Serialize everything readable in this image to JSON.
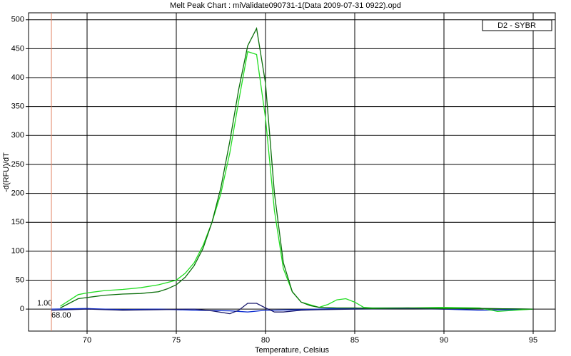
{
  "chart_data": {
    "type": "line",
    "title": "Melt Peak Chart : miValidate090731-1(Data 2009-07-31 0922).opd",
    "x_label": "Temperature, Celsius",
    "y_label": "-d(RFU)/dT",
    "legend_label": "D2 - SYBR",
    "threshold_label": "1.00",
    "marker_line": {
      "value": 68,
      "label": "68.00",
      "color": "#e08060"
    },
    "xlim": [
      66.72,
      96.24
    ],
    "ylim": [
      -38,
      512
    ],
    "xticks": [
      70,
      75,
      80,
      85,
      90,
      95
    ],
    "yticks": [
      0,
      50,
      100,
      150,
      200,
      250,
      300,
      350,
      400,
      450,
      500
    ],
    "grid": true,
    "series": [
      {
        "color": "#0a6e0a",
        "x": [
          68.5,
          69,
          69.5,
          70,
          71,
          72,
          73,
          74,
          74.5,
          75,
          75.5,
          76,
          76.5,
          77,
          77.5,
          78,
          78.5,
          79,
          79.5,
          80,
          80.5,
          81,
          81.5,
          82,
          82.5,
          83,
          84,
          85,
          86,
          88,
          90,
          92,
          95
        ],
        "values": [
          2,
          10,
          18,
          20,
          24,
          26,
          27,
          30,
          35,
          42,
          55,
          75,
          105,
          150,
          210,
          290,
          380,
          455,
          485,
          390,
          200,
          80,
          30,
          12,
          6,
          3,
          2,
          2,
          1,
          2,
          1,
          1,
          0
        ]
      },
      {
        "color": "#22dd22",
        "x": [
          68.5,
          69,
          69.5,
          70,
          71,
          72,
          73,
          74,
          75,
          75.5,
          76,
          76.5,
          77,
          77.5,
          78,
          78.5,
          79,
          79.5,
          80,
          80.5,
          81,
          81.5,
          82,
          83,
          83.5,
          84,
          84.5,
          85,
          85.5,
          86,
          88,
          90,
          92,
          93,
          95
        ],
        "values": [
          5,
          15,
          25,
          28,
          32,
          34,
          37,
          42,
          50,
          62,
          80,
          110,
          150,
          200,
          270,
          360,
          445,
          440,
          330,
          170,
          70,
          30,
          12,
          3,
          8,
          16,
          18,
          12,
          3,
          2,
          2,
          3,
          2,
          -4,
          0
        ]
      },
      {
        "color": "#1a1a6e",
        "x": [
          68,
          70,
          72,
          74,
          76,
          77,
          78,
          78.5,
          79,
          79.5,
          80,
          80.5,
          81,
          82,
          83,
          85,
          88,
          90,
          92,
          95
        ],
        "values": [
          -2,
          0,
          -2,
          -1,
          0,
          -3,
          -8,
          -2,
          10,
          10,
          2,
          -5,
          -5,
          -2,
          -1,
          0,
          1,
          0,
          1,
          0
        ]
      },
      {
        "color": "#1030d0",
        "x": [
          68,
          70,
          72,
          74,
          76,
          78,
          79,
          80,
          82,
          84,
          86,
          88,
          90,
          92,
          94,
          95
        ],
        "values": [
          0,
          1,
          -1,
          0,
          -2,
          -3,
          -5,
          -2,
          -1,
          1,
          2,
          2,
          0,
          -2,
          -1,
          0
        ]
      }
    ]
  }
}
